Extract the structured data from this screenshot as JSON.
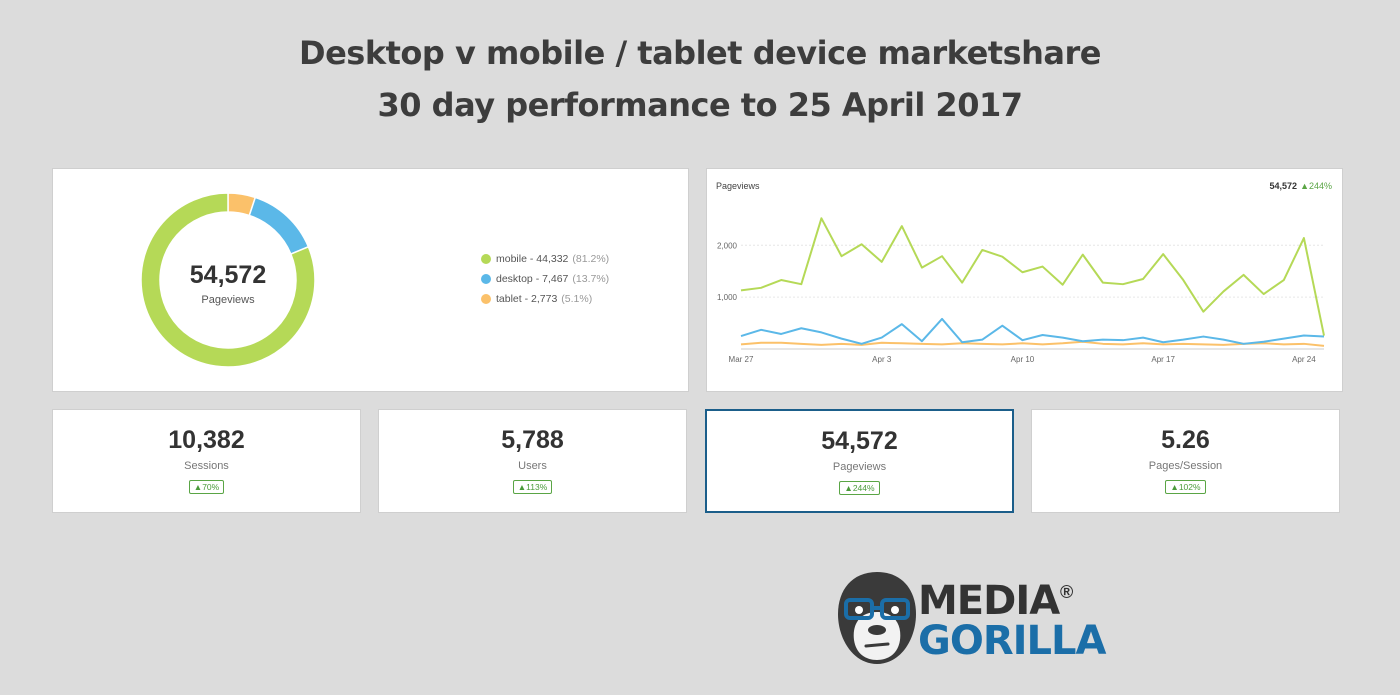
{
  "title_line1": "Desktop v mobile / tablet device marketshare",
  "title_line2": "30 day performance to 25 April 2017",
  "donut": {
    "center_value": "54,572",
    "center_label": "Pageviews",
    "legend": [
      {
        "label": "mobile - 44,332",
        "pct": "(81.2%)",
        "color": "#b5d957"
      },
      {
        "label": "desktop - 7,467",
        "pct": "(13.7%)",
        "color": "#5bb8e8"
      },
      {
        "label": "tablet - 2,773",
        "pct": "(5.1%)",
        "color": "#fbc16a"
      }
    ]
  },
  "line_panel": {
    "title": "Pageviews",
    "total": "54,572",
    "change": "▲244%"
  },
  "chart_data": [
    {
      "type": "pie",
      "categories": [
        "mobile",
        "desktop",
        "tablet"
      ],
      "values": [
        44332,
        7467,
        2773
      ],
      "colors": [
        "#b5d957",
        "#5bb8e8",
        "#fbc16a"
      ],
      "legend": "right"
    },
    {
      "type": "line",
      "x": [
        "Mar 27",
        "Mar 28",
        "Mar 29",
        "Mar 30",
        "Mar 31",
        "Apr 1",
        "Apr 2",
        "Apr 3",
        "Apr 4",
        "Apr 5",
        "Apr 6",
        "Apr 7",
        "Apr 8",
        "Apr 9",
        "Apr 10",
        "Apr 11",
        "Apr 12",
        "Apr 13",
        "Apr 14",
        "Apr 15",
        "Apr 16",
        "Apr 17",
        "Apr 18",
        "Apr 19",
        "Apr 20",
        "Apr 21",
        "Apr 22",
        "Apr 23",
        "Apr 24",
        "Apr 25"
      ],
      "xticks": [
        "Mar 27",
        "Apr 3",
        "Apr 10",
        "Apr 17",
        "Apr 24"
      ],
      "yticks": [
        {
          "value": 1000,
          "label": "1,000"
        },
        {
          "value": 2000,
          "label": "2,000"
        }
      ],
      "ylim": [
        0,
        2700
      ],
      "grid": true,
      "series": [
        {
          "name": "mobile",
          "color": "#b5d957",
          "values": [
            1130,
            1180,
            1330,
            1250,
            2520,
            1790,
            2020,
            1680,
            2370,
            1570,
            1790,
            1280,
            1910,
            1780,
            1480,
            1590,
            1240,
            1820,
            1280,
            1250,
            1350,
            1830,
            1330,
            720,
            1110,
            1430,
            1060,
            1330,
            2140,
            260
          ]
        },
        {
          "name": "desktop",
          "color": "#5bb8e8",
          "values": [
            250,
            370,
            290,
            400,
            320,
            200,
            100,
            220,
            480,
            150,
            580,
            130,
            180,
            450,
            170,
            270,
            220,
            150,
            180,
            170,
            220,
            130,
            180,
            240,
            180,
            100,
            140,
            200,
            260,
            240
          ]
        },
        {
          "name": "tablet",
          "color": "#fbc16a",
          "values": [
            90,
            120,
            120,
            100,
            80,
            100,
            80,
            120,
            110,
            100,
            90,
            110,
            100,
            90,
            110,
            90,
            110,
            140,
            100,
            90,
            110,
            90,
            100,
            90,
            80,
            100,
            110,
            90,
            100,
            60
          ]
        }
      ]
    }
  ],
  "stats": [
    {
      "value": "10,382",
      "label": "Sessions",
      "badge": "▲70%"
    },
    {
      "value": "5,788",
      "label": "Users",
      "badge": "▲113%"
    },
    {
      "value": "54,572",
      "label": "Pageviews",
      "badge": "▲244%"
    },
    {
      "value": "5.26",
      "label": "Pages/Session",
      "badge": "▲102%"
    }
  ],
  "logo": {
    "line1": "MEDIA",
    "line2": "GORILLA",
    "reg": "®"
  }
}
